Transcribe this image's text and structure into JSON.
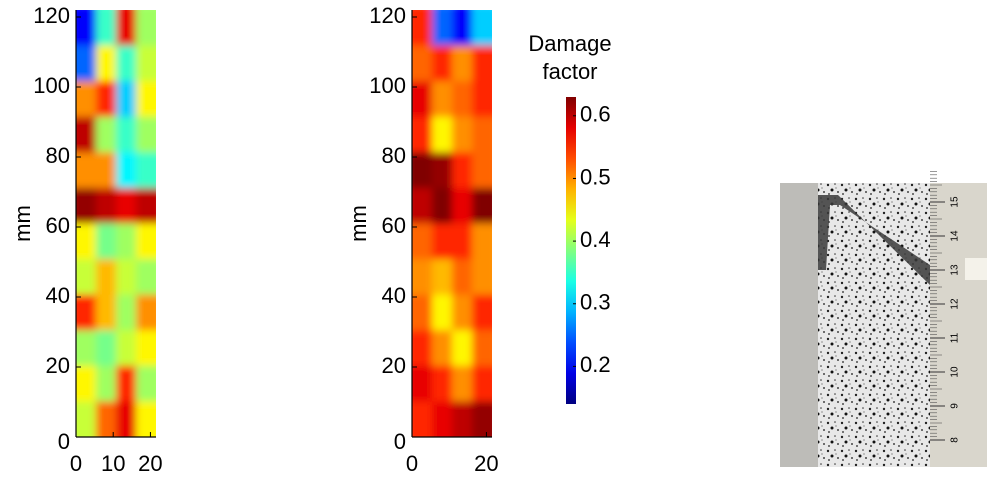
{
  "chart_data": [
    {
      "type": "heatmap",
      "ylabel": "mm",
      "xlim": [
        0,
        21.5
      ],
      "ylim": [
        0,
        122
      ],
      "xticks": [
        0,
        10,
        20
      ],
      "yticks": [
        0,
        20,
        40,
        60,
        80,
        100,
        120
      ],
      "z": [
        [
          0.2,
          0.35,
          0.58,
          0.4
        ],
        [
          0.25,
          0.45,
          0.35,
          0.42
        ],
        [
          0.5,
          0.55,
          0.3,
          0.45
        ],
        [
          0.6,
          0.4,
          0.35,
          0.4
        ],
        [
          0.5,
          0.5,
          0.32,
          0.35
        ],
        [
          0.62,
          0.6,
          0.58,
          0.6
        ],
        [
          0.45,
          0.38,
          0.4,
          0.45
        ],
        [
          0.42,
          0.48,
          0.42,
          0.4
        ],
        [
          0.55,
          0.48,
          0.4,
          0.5
        ],
        [
          0.4,
          0.38,
          0.42,
          0.45
        ],
        [
          0.45,
          0.4,
          0.55,
          0.4
        ],
        [
          0.42,
          0.52,
          0.58,
          0.45
        ]
      ]
    },
    {
      "type": "heatmap",
      "ylabel": "mm",
      "xlim": [
        0,
        21.5
      ],
      "ylim": [
        0,
        122
      ],
      "xticks": [
        0,
        20
      ],
      "yticks": [
        0,
        20,
        40,
        60,
        80,
        100,
        120
      ],
      "z": [
        [
          0.55,
          0.25,
          0.2,
          0.3
        ],
        [
          0.52,
          0.55,
          0.5,
          0.55
        ],
        [
          0.58,
          0.5,
          0.52,
          0.55
        ],
        [
          0.55,
          0.45,
          0.5,
          0.52
        ],
        [
          0.63,
          0.62,
          0.55,
          0.52
        ],
        [
          0.6,
          0.63,
          0.58,
          0.63
        ],
        [
          0.52,
          0.55,
          0.55,
          0.5
        ],
        [
          0.5,
          0.48,
          0.52,
          0.5
        ],
        [
          0.52,
          0.45,
          0.5,
          0.55
        ],
        [
          0.55,
          0.5,
          0.45,
          0.52
        ],
        [
          0.58,
          0.55,
          0.5,
          0.55
        ],
        [
          0.55,
          0.58,
          0.6,
          0.62
        ]
      ],
      "colorbar_title": "Damage factor",
      "zlim": [
        0.14,
        0.63
      ],
      "zticks": [
        0.2,
        0.3,
        0.4,
        0.5,
        0.6
      ]
    }
  ],
  "photo": {
    "ruler_labels": [
      "8",
      "9",
      "10",
      "11",
      "12",
      "13",
      "14",
      "15"
    ]
  }
}
